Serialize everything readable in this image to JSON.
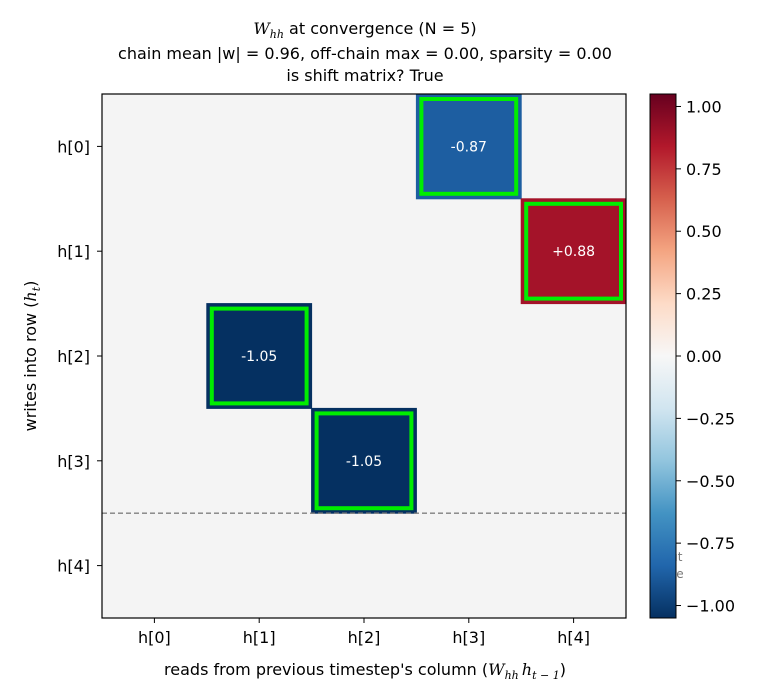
{
  "chart_data": {
    "type": "heatmap",
    "title": {
      "matrix_symbol": "W",
      "matrix_subscript": "hh",
      "rest": " at convergence  (N = 5)",
      "line2": "chain mean |w| = 0.96, off-chain max = 0.00, sparsity = 0.00",
      "line3": "is shift matrix? True"
    },
    "xlabel": {
      "text": "reads from previous timestep's column (",
      "expr_main": "W",
      "expr_sub": "hh",
      "expr_h": "h",
      "expr_h_sub": "t − 1",
      "close": ")"
    },
    "ylabel": {
      "text": "writes into row (",
      "var": "h",
      "sub": "t",
      "close": ")"
    },
    "x_ticklabels": [
      "h[0]",
      "h[1]",
      "h[2]",
      "h[3]",
      "h[4]"
    ],
    "y_ticklabels": [
      "h[0]",
      "h[1]",
      "h[2]",
      "h[3]",
      "h[4]"
    ],
    "cells": [
      {
        "row": 0,
        "col": 3,
        "value": -0.87,
        "label": "-0.87"
      },
      {
        "row": 1,
        "col": 4,
        "value": 0.88,
        "label": "+0.88"
      },
      {
        "row": 2,
        "col": 1,
        "value": -1.05,
        "label": "-1.05"
      },
      {
        "row": 3,
        "col": 2,
        "value": -1.05,
        "label": "-1.05"
      }
    ],
    "zero_cell_color": "#f4f4f4",
    "highlight_color": "#00ee00",
    "separator_between_rows": [
      3,
      4
    ],
    "separator_label": "input stage",
    "colorbar": {
      "colormap": "RdBu_r",
      "range": [
        -1.05,
        1.05
      ],
      "ticks": [
        "1.00",
        "0.75",
        "0.50",
        "0.25",
        "0.00",
        "−0.25",
        "−0.50",
        "−0.75",
        "−1.00"
      ],
      "tick_values": [
        1.0,
        0.75,
        0.5,
        0.25,
        0.0,
        -0.25,
        -0.5,
        -0.75,
        -1.0
      ]
    },
    "grid": false
  }
}
